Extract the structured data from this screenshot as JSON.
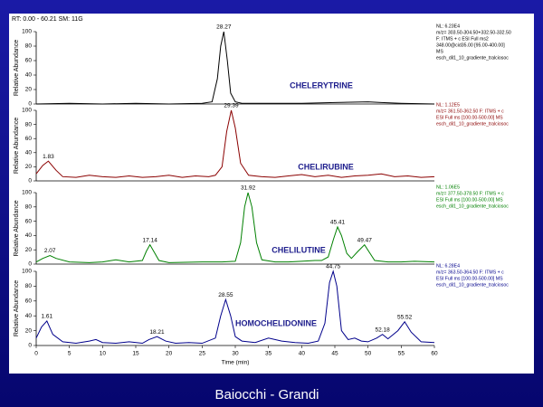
{
  "footer": "Baiocchi - Grandi",
  "chart_data": [
    {
      "type": "line",
      "header": "RT: 0.00 - 60.21   SM: 11G",
      "ylabel": "Relative Abundance",
      "xlim": [
        0,
        60
      ],
      "ylim": [
        0,
        100
      ],
      "yticks": [
        0,
        20,
        40,
        60,
        80,
        100
      ],
      "x": [
        0,
        5,
        10,
        15,
        20,
        25,
        26.5,
        27.3,
        27.8,
        28.27,
        28.8,
        29.3,
        30,
        31,
        35,
        40,
        45,
        50,
        52,
        55,
        60
      ],
      "series": [
        {
          "color": "#000000",
          "values": [
            0,
            1,
            0,
            1,
            0,
            1,
            3,
            35,
            80,
            100,
            60,
            15,
            3,
            1,
            1,
            1,
            2,
            3,
            2,
            1,
            0
          ]
        }
      ],
      "peak_labels": [
        {
          "x": 28.27,
          "y": 100
        }
      ],
      "annotation": "CHELERYTRINE",
      "info": [
        "NL: 6.23E4",
        "m/z= 303.50-304.50+332.50-332.50",
        "F: ITMS + c ESI Full ms2",
        "348.00@cid35.00 [95.00-400.00]",
        "MS",
        "esch_dil1_10_gradiente_tralciosoc"
      ]
    },
    {
      "type": "line",
      "ylabel": "Relative Abundance",
      "xlim": [
        0,
        60
      ],
      "ylim": [
        0,
        100
      ],
      "yticks": [
        0,
        20,
        40,
        60,
        80,
        100
      ],
      "x": [
        0,
        1,
        1.83,
        3,
        4,
        6,
        8,
        10,
        12,
        14,
        16,
        18,
        20,
        22,
        24,
        26,
        27,
        28,
        28.7,
        29.39,
        30,
        30.8,
        32,
        34,
        36,
        38,
        40,
        42,
        44,
        46,
        48,
        50,
        52,
        54,
        56,
        58,
        60
      ],
      "series": [
        {
          "color": "#8b0000",
          "values": [
            10,
            22,
            28,
            15,
            6,
            5,
            8,
            6,
            5,
            7,
            5,
            6,
            8,
            5,
            7,
            6,
            8,
            20,
            70,
            100,
            75,
            25,
            8,
            6,
            5,
            7,
            9,
            6,
            8,
            5,
            7,
            8,
            10,
            6,
            7,
            5,
            6
          ]
        }
      ],
      "peak_labels": [
        {
          "x": 1.83,
          "y": 28
        },
        {
          "x": 29.39,
          "y": 100
        }
      ],
      "annotation": "CHELIRUBINE",
      "info": [
        "NL: 1.12E5",
        "m/z= 361.50-362.50 F: ITMS + c",
        "ESI Full ms [100.00-500.00] MS",
        "esch_dil1_10_gradiente_tralciosoc"
      ]
    },
    {
      "type": "line",
      "ylabel": "Relative Abundance",
      "xlim": [
        0,
        60
      ],
      "ylim": [
        0,
        100
      ],
      "yticks": [
        0,
        20,
        40,
        60,
        80,
        100
      ],
      "x": [
        0,
        1,
        2.07,
        3,
        5,
        8,
        10,
        12,
        14,
        16,
        16.6,
        17.14,
        17.7,
        18.5,
        20,
        25,
        28,
        30,
        30.8,
        31.4,
        31.92,
        32.5,
        33.2,
        34,
        36,
        38,
        40,
        42,
        43,
        44,
        44.8,
        45.41,
        46,
        46.8,
        47.5,
        48.5,
        49.47,
        50.3,
        51,
        53,
        55,
        57,
        60
      ],
      "series": [
        {
          "color": "#008000",
          "values": [
            3,
            8,
            12,
            8,
            3,
            2,
            3,
            6,
            3,
            5,
            18,
            27,
            18,
            5,
            2,
            3,
            3,
            4,
            30,
            80,
            100,
            80,
            30,
            6,
            3,
            3,
            4,
            5,
            5,
            10,
            35,
            52,
            40,
            15,
            8,
            18,
            27,
            15,
            5,
            3,
            3,
            4,
            3
          ]
        }
      ],
      "peak_labels": [
        {
          "x": 2.07,
          "y": 12
        },
        {
          "x": 17.14,
          "y": 27
        },
        {
          "x": 31.92,
          "y": 100
        },
        {
          "x": 45.41,
          "y": 52
        },
        {
          "x": 49.47,
          "y": 27
        }
      ],
      "annotation": "CHELILUTINE",
      "info": [
        "NL: 1.06E5",
        "m/z= 377.50-378.50 F: ITMS + c",
        "ESI Full ms [100.00-500.00] MS",
        "esch_dil1_10_gradiente_tralciosoc"
      ]
    },
    {
      "type": "line",
      "ylabel": "Relative Abundance",
      "xlabel": "Time (min)",
      "xlim": [
        0,
        60
      ],
      "xticks": [
        0,
        5,
        10,
        15,
        20,
        25,
        30,
        35,
        40,
        45,
        50,
        55,
        60
      ],
      "ylim": [
        0,
        100
      ],
      "yticks": [
        0,
        20,
        40,
        60,
        80,
        100
      ],
      "x": [
        0,
        0.8,
        1.61,
        2.5,
        4,
        6,
        8,
        9,
        10,
        12,
        14,
        16,
        17,
        18.21,
        19.5,
        21,
        23,
        25,
        27,
        27.8,
        28.55,
        29.3,
        30,
        31,
        33,
        35,
        37,
        39,
        41,
        42.5,
        43.5,
        44.2,
        44.75,
        45.3,
        46,
        47,
        48,
        49,
        50,
        51.3,
        52.18,
        53,
        54.5,
        55.52,
        56.5,
        58,
        60
      ],
      "series": [
        {
          "color": "#00008b",
          "values": [
            10,
            25,
            33,
            15,
            5,
            3,
            6,
            8,
            4,
            3,
            5,
            3,
            8,
            12,
            6,
            3,
            4,
            3,
            10,
            40,
            62,
            40,
            12,
            6,
            4,
            10,
            6,
            4,
            3,
            6,
            30,
            85,
            100,
            80,
            20,
            8,
            10,
            6,
            5,
            10,
            15,
            9,
            20,
            32,
            18,
            5,
            4
          ]
        }
      ],
      "peak_labels": [
        {
          "x": 1.61,
          "y": 33
        },
        {
          "x": 18.21,
          "y": 12
        },
        {
          "x": 28.55,
          "y": 62
        },
        {
          "x": 44.75,
          "y": 100
        },
        {
          "x": 52.18,
          "y": 15
        },
        {
          "x": 55.52,
          "y": 32
        }
      ],
      "annotation": "HOMOCHELIDONINE",
      "info": [
        "NL: 6.28E4",
        "m/z= 363.50-364.50 F: ITMS + c",
        "ESI Full ms [100.00-500.00] MS",
        "esch_dil1_10_gradiente_tralciosoc"
      ]
    }
  ]
}
